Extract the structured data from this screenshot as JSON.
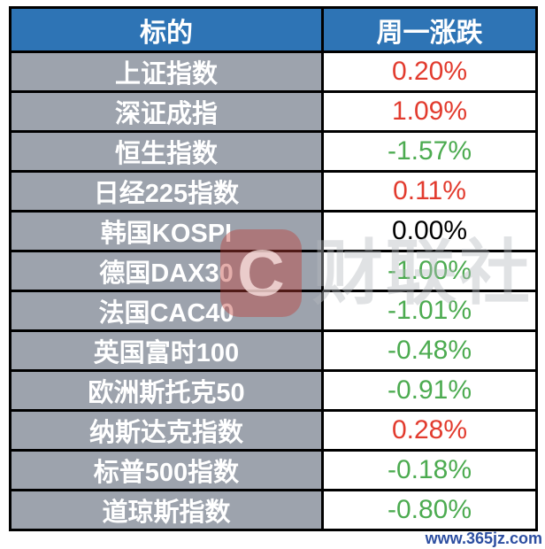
{
  "table": {
    "headers": [
      "标的",
      "周一涨跌"
    ],
    "rows": [
      {
        "label": "上证指数",
        "change": "0.20%",
        "direction": "up"
      },
      {
        "label": "深证成指",
        "change": "1.09%",
        "direction": "up"
      },
      {
        "label": "恒生指数",
        "change": "-1.57%",
        "direction": "down"
      },
      {
        "label": "日经225指数",
        "change": "0.11%",
        "direction": "up"
      },
      {
        "label": "韩国KOSPI",
        "change": "0.00%",
        "direction": "flat"
      },
      {
        "label": "德国DAX30",
        "change": "-1.00%",
        "direction": "down"
      },
      {
        "label": "法国CAC40",
        "change": "-1.01%",
        "direction": "down"
      },
      {
        "label": "英国富时100",
        "change": "-0.48%",
        "direction": "down"
      },
      {
        "label": "欧洲斯托克50",
        "change": "-0.91%",
        "direction": "down"
      },
      {
        "label": "纳斯达克指数",
        "change": "0.28%",
        "direction": "up"
      },
      {
        "label": "标普500指数",
        "change": "-0.18%",
        "direction": "down"
      },
      {
        "label": "道琼斯指数",
        "change": "-0.80%",
        "direction": "down"
      }
    ]
  },
  "chart_data": {
    "type": "table",
    "title": "",
    "columns": [
      "标的",
      "周一涨跌"
    ],
    "categories": [
      "上证指数",
      "深证成指",
      "恒生指数",
      "日经225指数",
      "韩国KOSPI",
      "德国DAX30",
      "法国CAC40",
      "英国富时100",
      "欧洲斯托克50",
      "纳斯达克指数",
      "标普500指数",
      "道琼斯指数"
    ],
    "values_pct": [
      0.2,
      1.09,
      -1.57,
      0.11,
      0.0,
      -1.0,
      -1.01,
      -0.48,
      -0.91,
      0.28,
      -0.18,
      -0.8
    ]
  },
  "watermark": {
    "logo_glyph": "C",
    "text": "财联社"
  },
  "footer": {
    "site_url": "www.365jz.com"
  },
  "colors": {
    "up": "#e23b2e",
    "down": "#4cab50",
    "flat": "#000000",
    "header_bg": "#2e74b5",
    "label_bg": "#9da3ad",
    "link": "#2d4fa1"
  }
}
